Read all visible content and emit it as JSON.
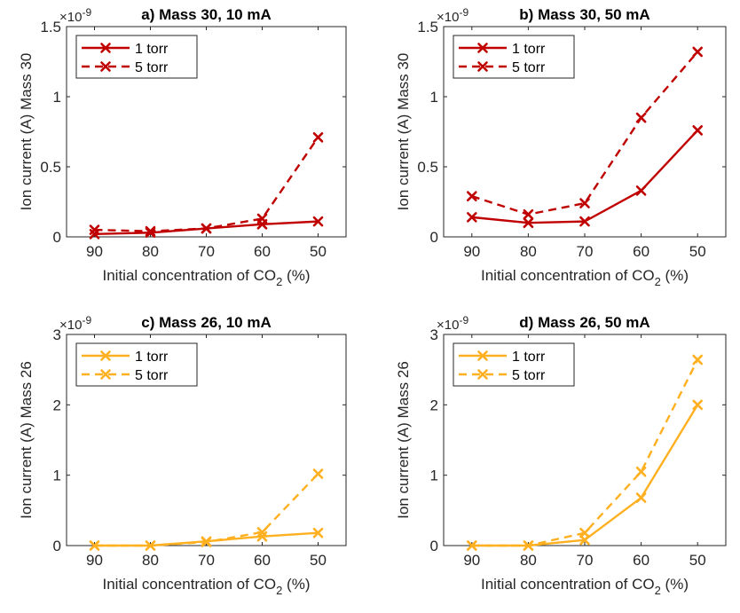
{
  "figure": {
    "colors": {
      "mass30": "#C00000",
      "mass26": "#FFB020",
      "axis": "#262626"
    }
  },
  "chart_data": [
    {
      "type": "line",
      "title": "a) Mass 30, 10 mA",
      "ylabel": "Ion current (A) Mass 30",
      "xlabel_main": "Initial concentration of CO",
      "xlabel_sub": "2",
      "xlabel_unit": " (%)",
      "exponent_base": "×10",
      "exponent_power": "-9",
      "categories": [
        "90",
        "80",
        "70",
        "60",
        "50"
      ],
      "ylim": [
        0,
        1.5
      ],
      "yticks": [
        "0",
        "0.5",
        "1",
        "1.5"
      ],
      "color": "#C00000",
      "legend_position": "top-left",
      "series": [
        {
          "name": "1 torr",
          "style": "solid",
          "values": [
            0.02,
            0.03,
            0.06,
            0.09,
            0.11
          ]
        },
        {
          "name": "5 torr",
          "style": "dashed",
          "values": [
            0.05,
            0.04,
            0.06,
            0.13,
            0.71
          ]
        }
      ]
    },
    {
      "type": "line",
      "title": "b) Mass 30, 50 mA",
      "ylabel": "Ion current (A) Mass 30",
      "xlabel_main": "Initial concentration of CO",
      "xlabel_sub": "2",
      "xlabel_unit": " (%)",
      "exponent_base": "×10",
      "exponent_power": "-9",
      "categories": [
        "90",
        "80",
        "70",
        "60",
        "50"
      ],
      "ylim": [
        0,
        1.5
      ],
      "yticks": [
        "0",
        "0.5",
        "1",
        "1.5"
      ],
      "color": "#C00000",
      "legend_position": "top-left",
      "series": [
        {
          "name": "1 torr",
          "style": "solid",
          "values": [
            0.14,
            0.1,
            0.11,
            0.33,
            0.76
          ]
        },
        {
          "name": "5 torr",
          "style": "dashed",
          "values": [
            0.29,
            0.16,
            0.24,
            0.85,
            1.32
          ]
        }
      ]
    },
    {
      "type": "line",
      "title": "c) Mass 26, 10 mA",
      "ylabel": "Ion current (A) Mass 26",
      "xlabel_main": "Initial concentration of CO",
      "xlabel_sub": "2",
      "xlabel_unit": " (%)",
      "exponent_base": "×10",
      "exponent_power": "-9",
      "categories": [
        "90",
        "80",
        "70",
        "60",
        "50"
      ],
      "ylim": [
        0,
        3
      ],
      "yticks": [
        "0",
        "1",
        "2",
        "3"
      ],
      "color": "#FFB020",
      "legend_position": "top-left",
      "series": [
        {
          "name": "1 torr",
          "style": "solid",
          "values": [
            0.0,
            0.0,
            0.06,
            0.13,
            0.18
          ]
        },
        {
          "name": "5 torr",
          "style": "dashed",
          "values": [
            0.0,
            0.0,
            0.05,
            0.19,
            1.02
          ]
        }
      ]
    },
    {
      "type": "line",
      "title": "d) Mass 26, 50 mA",
      "ylabel": "Ion current (A) Mass 26",
      "xlabel_main": "Initial concentration of CO",
      "xlabel_sub": "2",
      "xlabel_unit": " (%)",
      "exponent_base": "×10",
      "exponent_power": "-9",
      "categories": [
        "90",
        "80",
        "70",
        "60",
        "50"
      ],
      "ylim": [
        0,
        3
      ],
      "yticks": [
        "0",
        "1",
        "2",
        "3"
      ],
      "color": "#FFB020",
      "legend_position": "top-left",
      "series": [
        {
          "name": "1 torr",
          "style": "solid",
          "values": [
            0.0,
            0.0,
            0.08,
            0.68,
            2.0
          ]
        },
        {
          "name": "5 torr",
          "style": "dashed",
          "values": [
            0.0,
            0.0,
            0.18,
            1.05,
            2.64
          ]
        }
      ]
    }
  ]
}
